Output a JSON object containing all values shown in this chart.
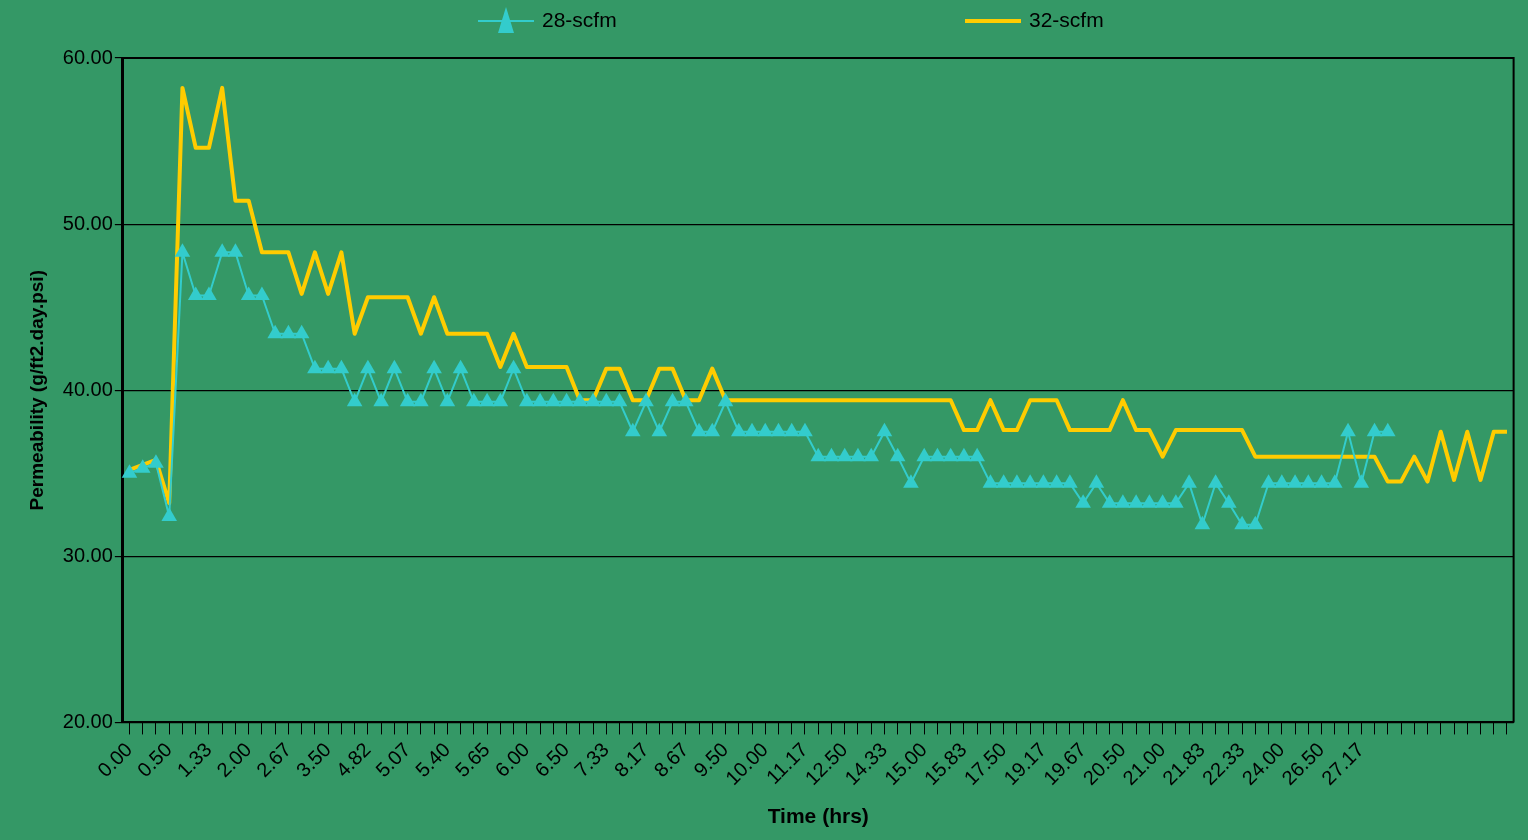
{
  "chart_data": {
    "type": "line",
    "xlabel": "Time (hrs)",
    "ylabel": "Permeability (g/ft2.day.psi)",
    "categories": [
      "0.00",
      null,
      null,
      "0.50",
      null,
      null,
      "1.33",
      null,
      null,
      "2.00",
      null,
      null,
      "2.67",
      null,
      null,
      "3.50",
      null,
      null,
      "4.82",
      null,
      null,
      "5.07",
      null,
      null,
      "5.40",
      null,
      null,
      "5.65",
      null,
      null,
      "6.00",
      null,
      null,
      "6.50",
      null,
      null,
      "7.33",
      null,
      null,
      "8.17",
      null,
      null,
      "8.67",
      null,
      null,
      "9.50",
      null,
      null,
      "10.00",
      null,
      null,
      "11.17",
      null,
      null,
      "12.50",
      null,
      null,
      "14.33",
      null,
      null,
      "15.00",
      null,
      null,
      "15.83",
      null,
      null,
      "17.50",
      null,
      null,
      "19.17",
      null,
      null,
      "19.67",
      null,
      null,
      "20.50",
      null,
      null,
      "21.00",
      null,
      null,
      "21.83",
      null,
      null,
      "22.33",
      null,
      null,
      "24.00",
      null,
      null,
      "26.50",
      null,
      null,
      "27.17",
      null,
      null,
      null,
      null,
      null,
      null,
      null,
      null,
      null,
      null,
      null
    ],
    "series": [
      {
        "name": "28-scfm",
        "color": "#33cccc",
        "marker": "triangle",
        "values": [
          35.0,
          35.3,
          35.6,
          32.4,
          48.3,
          45.7,
          45.7,
          48.3,
          48.3,
          45.7,
          45.7,
          43.4,
          43.4,
          43.4,
          41.3,
          41.3,
          41.3,
          39.3,
          41.3,
          39.3,
          41.3,
          39.3,
          39.3,
          41.3,
          39.3,
          41.3,
          39.3,
          39.3,
          39.3,
          41.3,
          39.3,
          39.3,
          39.3,
          39.3,
          39.3,
          39.3,
          39.3,
          39.3,
          37.5,
          39.3,
          37.5,
          39.3,
          39.3,
          37.5,
          37.5,
          39.3,
          37.5,
          37.5,
          37.5,
          37.5,
          37.5,
          37.5,
          36.0,
          36.0,
          36.0,
          36.0,
          36.0,
          37.5,
          36.0,
          34.4,
          36.0,
          36.0,
          36.0,
          36.0,
          36.0,
          34.4,
          34.4,
          34.4,
          34.4,
          34.4,
          34.4,
          34.4,
          33.2,
          34.4,
          33.2,
          33.2,
          33.2,
          33.2,
          33.2,
          33.2,
          34.4,
          31.9,
          34.4,
          33.2,
          31.9,
          31.9,
          34.4,
          34.4,
          34.4,
          34.4,
          34.4,
          34.4,
          37.5,
          34.4,
          37.5,
          37.5,
          null,
          null,
          null,
          null,
          null,
          null,
          null,
          null,
          null
        ]
      },
      {
        "name": "32-scfm",
        "color": "#ffcc00",
        "marker": "none",
        "values": [
          35.2,
          35.5,
          35.8,
          33.2,
          58.2,
          54.6,
          54.6,
          58.2,
          51.4,
          51.4,
          48.3,
          48.3,
          48.3,
          45.8,
          48.3,
          45.8,
          48.3,
          43.4,
          45.6,
          45.6,
          45.6,
          45.6,
          43.4,
          45.6,
          43.4,
          43.4,
          43.4,
          43.4,
          41.4,
          43.4,
          41.4,
          41.4,
          41.4,
          41.4,
          39.4,
          39.4,
          41.3,
          41.3,
          39.4,
          39.4,
          41.3,
          41.3,
          39.4,
          39.4,
          41.3,
          39.4,
          39.4,
          39.4,
          39.4,
          39.4,
          39.4,
          39.4,
          39.4,
          39.4,
          39.4,
          39.4,
          39.4,
          39.4,
          39.4,
          39.4,
          39.4,
          39.4,
          39.4,
          37.6,
          37.6,
          39.4,
          37.6,
          37.6,
          39.4,
          39.4,
          39.4,
          37.6,
          37.6,
          37.6,
          37.6,
          39.4,
          37.6,
          37.6,
          36.0,
          37.6,
          37.6,
          37.6,
          37.6,
          37.6,
          37.6,
          36.0,
          36.0,
          36.0,
          36.0,
          36.0,
          36.0,
          36.0,
          36.0,
          36.0,
          36.0,
          34.5,
          34.5,
          36.0,
          34.5,
          37.5,
          34.6,
          37.5,
          34.6,
          37.5,
          37.5
        ]
      }
    ],
    "ylim": [
      20,
      60
    ],
    "yticks": [
      {
        "value": 20,
        "label": "20.00"
      },
      {
        "value": 30,
        "label": "30.00"
      },
      {
        "value": 40,
        "label": "40.00"
      },
      {
        "value": 50,
        "label": "50.00"
      },
      {
        "value": 60,
        "label": "60.00"
      }
    ],
    "grid": "y",
    "legend": "top"
  }
}
